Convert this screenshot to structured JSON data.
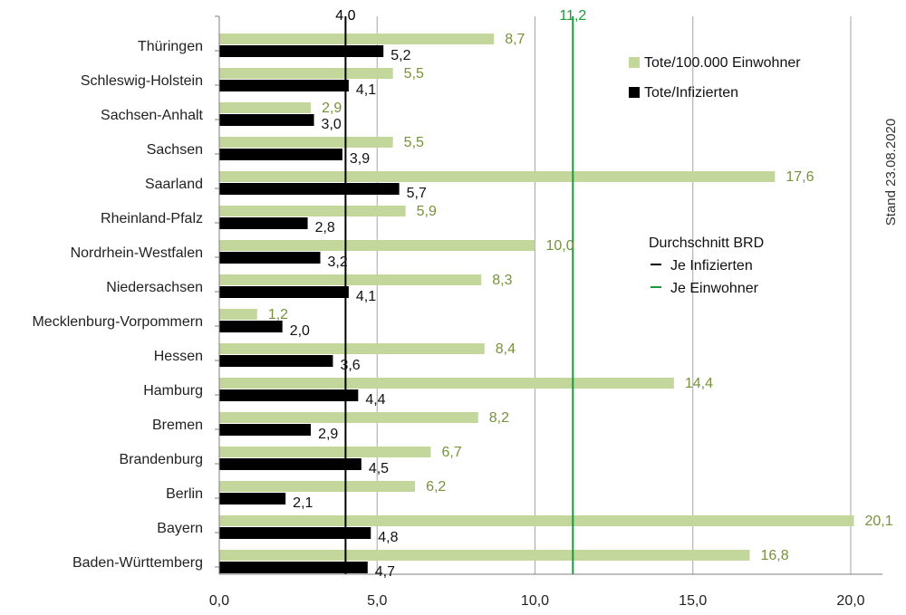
{
  "chart_data": {
    "type": "bar",
    "orientation": "horizontal",
    "categories": [
      "Thüringen",
      "Schleswig-Holstein",
      "Sachsen-Anhalt",
      "Sachsen",
      "Saarland",
      "Rheinland-Pfalz",
      "Nordrhein-Westfalen",
      "Niedersachsen",
      "Mecklenburg-Vorpommern",
      "Hessen",
      "Hamburg",
      "Bremen",
      "Brandenburg",
      "Berlin",
      "Bayern",
      "Baden-Württemberg"
    ],
    "series": [
      {
        "name": "Tote/100.000 Einwohner",
        "color": "#c3d69b",
        "label_color": "#76923c",
        "values": [
          8.7,
          5.5,
          2.9,
          5.5,
          17.6,
          5.9,
          10.0,
          8.3,
          1.2,
          8.4,
          14.4,
          8.2,
          6.7,
          6.2,
          20.1,
          16.8
        ],
        "labels": [
          "8,7",
          "5,5",
          "2,9",
          "5,5",
          "17,6",
          "5,9",
          "10,0",
          "8,3",
          "1,2",
          "8,4",
          "14,4",
          "8,2",
          "6,7",
          "6,2",
          "20,1",
          "16,8"
        ]
      },
      {
        "name": "Tote/Infizierten",
        "color": "#000000",
        "label_color": "#111111",
        "values": [
          5.2,
          4.1,
          3.0,
          3.9,
          5.7,
          2.8,
          3.2,
          4.1,
          2.0,
          3.6,
          4.4,
          2.9,
          4.5,
          2.1,
          4.8,
          4.7
        ],
        "labels": [
          "5,2",
          "4,1",
          "3,0",
          "3,9",
          "5,7",
          "2,8",
          "3,2",
          "4,1",
          "2,0",
          "3,6",
          "4,4",
          "2,9",
          "4,5",
          "2,1",
          "4,8",
          "4,7"
        ]
      }
    ],
    "xlim": [
      0,
      21
    ],
    "x_ticks": [
      0,
      5,
      10,
      15,
      20
    ],
    "x_tick_labels": [
      "0,0",
      "5,0",
      "10,0",
      "15,0",
      "20,0"
    ],
    "grid": true,
    "reference_lines": [
      {
        "value": 4.0,
        "label": "4,0",
        "color": "#000000"
      },
      {
        "value": 11.2,
        "label": "11,2",
        "color": "#1a9a3a"
      }
    ],
    "legend": {
      "position": "top-right"
    },
    "reference_legend": {
      "title": "Durchschnitt  BRD",
      "items": [
        {
          "label": "Je Infizierten",
          "color": "#000000"
        },
        {
          "label": "Je Einwohner",
          "color": "#1a9a3a"
        }
      ]
    },
    "annotation": "Stand 23.08.2020"
  }
}
